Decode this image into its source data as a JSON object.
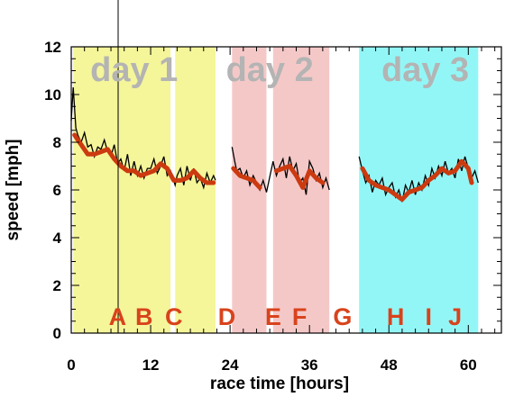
{
  "chart_data": {
    "type": "line",
    "xlabel": "race time [hours]",
    "ylabel": "speed [mph]",
    "xlim": [
      0,
      65
    ],
    "ylim": [
      0,
      12
    ],
    "x_ticks": [
      0,
      12,
      24,
      36,
      48,
      60
    ],
    "y_ticks": [
      0,
      2,
      4,
      6,
      8,
      10,
      12
    ],
    "grid": false,
    "day_labels": [
      {
        "text": "day 1",
        "x": 9.5
      },
      {
        "text": "day 2",
        "x": 30
      },
      {
        "text": "day 3",
        "x": 53.5
      }
    ],
    "segment_labels": [
      {
        "text": "A",
        "x": 7
      },
      {
        "text": "B",
        "x": 11
      },
      {
        "text": "C",
        "x": 15.5
      },
      {
        "text": "D",
        "x": 23.5
      },
      {
        "text": "E",
        "x": 30.5
      },
      {
        "text": "F",
        "x": 34.5
      },
      {
        "text": "G",
        "x": 41
      },
      {
        "text": "H",
        "x": 49
      },
      {
        "text": "I",
        "x": 54
      },
      {
        "text": "J",
        "x": 58
      }
    ],
    "shaded_periods": [
      {
        "start": 0.3,
        "end": 15,
        "color": "#f5f59a"
      },
      {
        "start": 15.7,
        "end": 21.8,
        "color": "#f5f59a"
      },
      {
        "start": 24.3,
        "end": 29.5,
        "color": "#f5c8c8"
      },
      {
        "start": 30.5,
        "end": 39,
        "color": "#f5c8c8"
      },
      {
        "start": 43.5,
        "end": 61.5,
        "color": "#93f6f6"
      }
    ],
    "series": [
      {
        "color": "#cc3a10",
        "x": [
          0.5,
          1.5,
          2.5,
          3.5,
          4.5,
          5.5,
          6.5,
          7.5,
          8.5,
          9.5,
          10.5,
          11.5,
          12.5,
          13.5,
          14.5,
          15.5,
          16.5,
          17.5,
          18.5,
          19.5,
          20.5,
          21.5
        ],
        "y": [
          8.3,
          7.9,
          7.5,
          7.5,
          7.6,
          7.7,
          7.3,
          7.0,
          6.8,
          6.8,
          6.6,
          6.7,
          6.8,
          7.1,
          6.9,
          6.4,
          6.4,
          6.5,
          6.8,
          6.5,
          6.3,
          6.3
        ]
      },
      {
        "color": "#cc3a10",
        "x": [
          24.5,
          25.5,
          26.5,
          27.5,
          28.5
        ],
        "y": [
          6.9,
          6.6,
          6.5,
          6.4,
          6.1
        ]
      },
      {
        "color": "#cc3a10",
        "x": [
          31,
          32,
          33,
          34,
          35,
          36,
          37,
          38
        ],
        "y": [
          6.8,
          6.9,
          7.0,
          6.6,
          6.1,
          6.8,
          6.5,
          6.3
        ]
      },
      {
        "color": "#cc3a10",
        "x": [
          44,
          45,
          46,
          47,
          48,
          49,
          50,
          51,
          52,
          53,
          54,
          55,
          56,
          57,
          58,
          59,
          60,
          60.5
        ],
        "y": [
          6.9,
          6.4,
          6.2,
          6.1,
          6.0,
          5.8,
          5.6,
          5.9,
          6.0,
          6.1,
          6.4,
          6.6,
          6.9,
          6.7,
          6.8,
          7.2,
          6.9,
          6.3
        ]
      }
    ],
    "raw_series": {
      "color": "#000000",
      "x": [
        0,
        0.3,
        0.7,
        1,
        1.5,
        2,
        2.5,
        3,
        3.5,
        4,
        4.5,
        5,
        5.5,
        6,
        6.5,
        7,
        7.5,
        8,
        8.5,
        9,
        9.5,
        10,
        10.5,
        11,
        11.5,
        12,
        12.5,
        13,
        13.5,
        14,
        14.5,
        15,
        15.7,
        16,
        16.5,
        17,
        17.5,
        18,
        18.5,
        19,
        19.5,
        20,
        20.5,
        21,
        21.5,
        21.8,
        24.3,
        24.7,
        25,
        25.5,
        26,
        26.5,
        27,
        27.5,
        28,
        28.5,
        29,
        29.5,
        30.5,
        31,
        31.5,
        32,
        32.5,
        33,
        33.5,
        34,
        34.5,
        35,
        35.5,
        36,
        36.5,
        37,
        37.5,
        38,
        38.5,
        39,
        43.5,
        44,
        44.5,
        45,
        45.5,
        46,
        46.5,
        47,
        47.5,
        48,
        48.5,
        49,
        49.5,
        50,
        50.5,
        51,
        51.5,
        52,
        52.5,
        53,
        53.5,
        54,
        54.5,
        55,
        55.5,
        56,
        56.5,
        57,
        57.5,
        58,
        58.5,
        59,
        59.5,
        60,
        60.5,
        61,
        61.5
      ],
      "y": [
        8.9,
        10.3,
        8.6,
        8.3,
        8.0,
        8.4,
        7.8,
        7.9,
        7.4,
        7.8,
        7.7,
        8.1,
        7.6,
        7.4,
        7.9,
        7.1,
        7.3,
        6.8,
        7.5,
        6.6,
        7.2,
        6.6,
        7.0,
        6.5,
        6.9,
        6.9,
        7.3,
        6.7,
        7.0,
        7.4,
        6.6,
        6.8,
        6.2,
        6.6,
        6.9,
        6.2,
        7.0,
        6.4,
        6.9,
        6.3,
        6.5,
        6.1,
        6.7,
        6.3,
        6.6,
        6.4,
        7.8,
        7.2,
        6.8,
        6.9,
        6.5,
        6.8,
        6.2,
        6.6,
        6.3,
        6.0,
        6.4,
        5.9,
        7.2,
        6.6,
        7.0,
        7.3,
        6.5,
        7.4,
        6.8,
        7.1,
        6.3,
        6.5,
        5.8,
        7.2,
        6.9,
        6.4,
        6.7,
        6.1,
        6.5,
        6.0,
        7.4,
        6.8,
        6.3,
        6.6,
        5.9,
        6.4,
        6.2,
        6.5,
        5.8,
        6.1,
        6.3,
        5.7,
        6.0,
        5.5,
        6.2,
        5.9,
        6.4,
        5.8,
        6.3,
        6.0,
        6.6,
        6.2,
        6.9,
        6.5,
        7.0,
        6.6,
        7.2,
        6.7,
        6.9,
        6.5,
        7.3,
        6.8,
        7.4,
        6.9,
        6.5,
        6.8,
        6.3
      ]
    }
  }
}
